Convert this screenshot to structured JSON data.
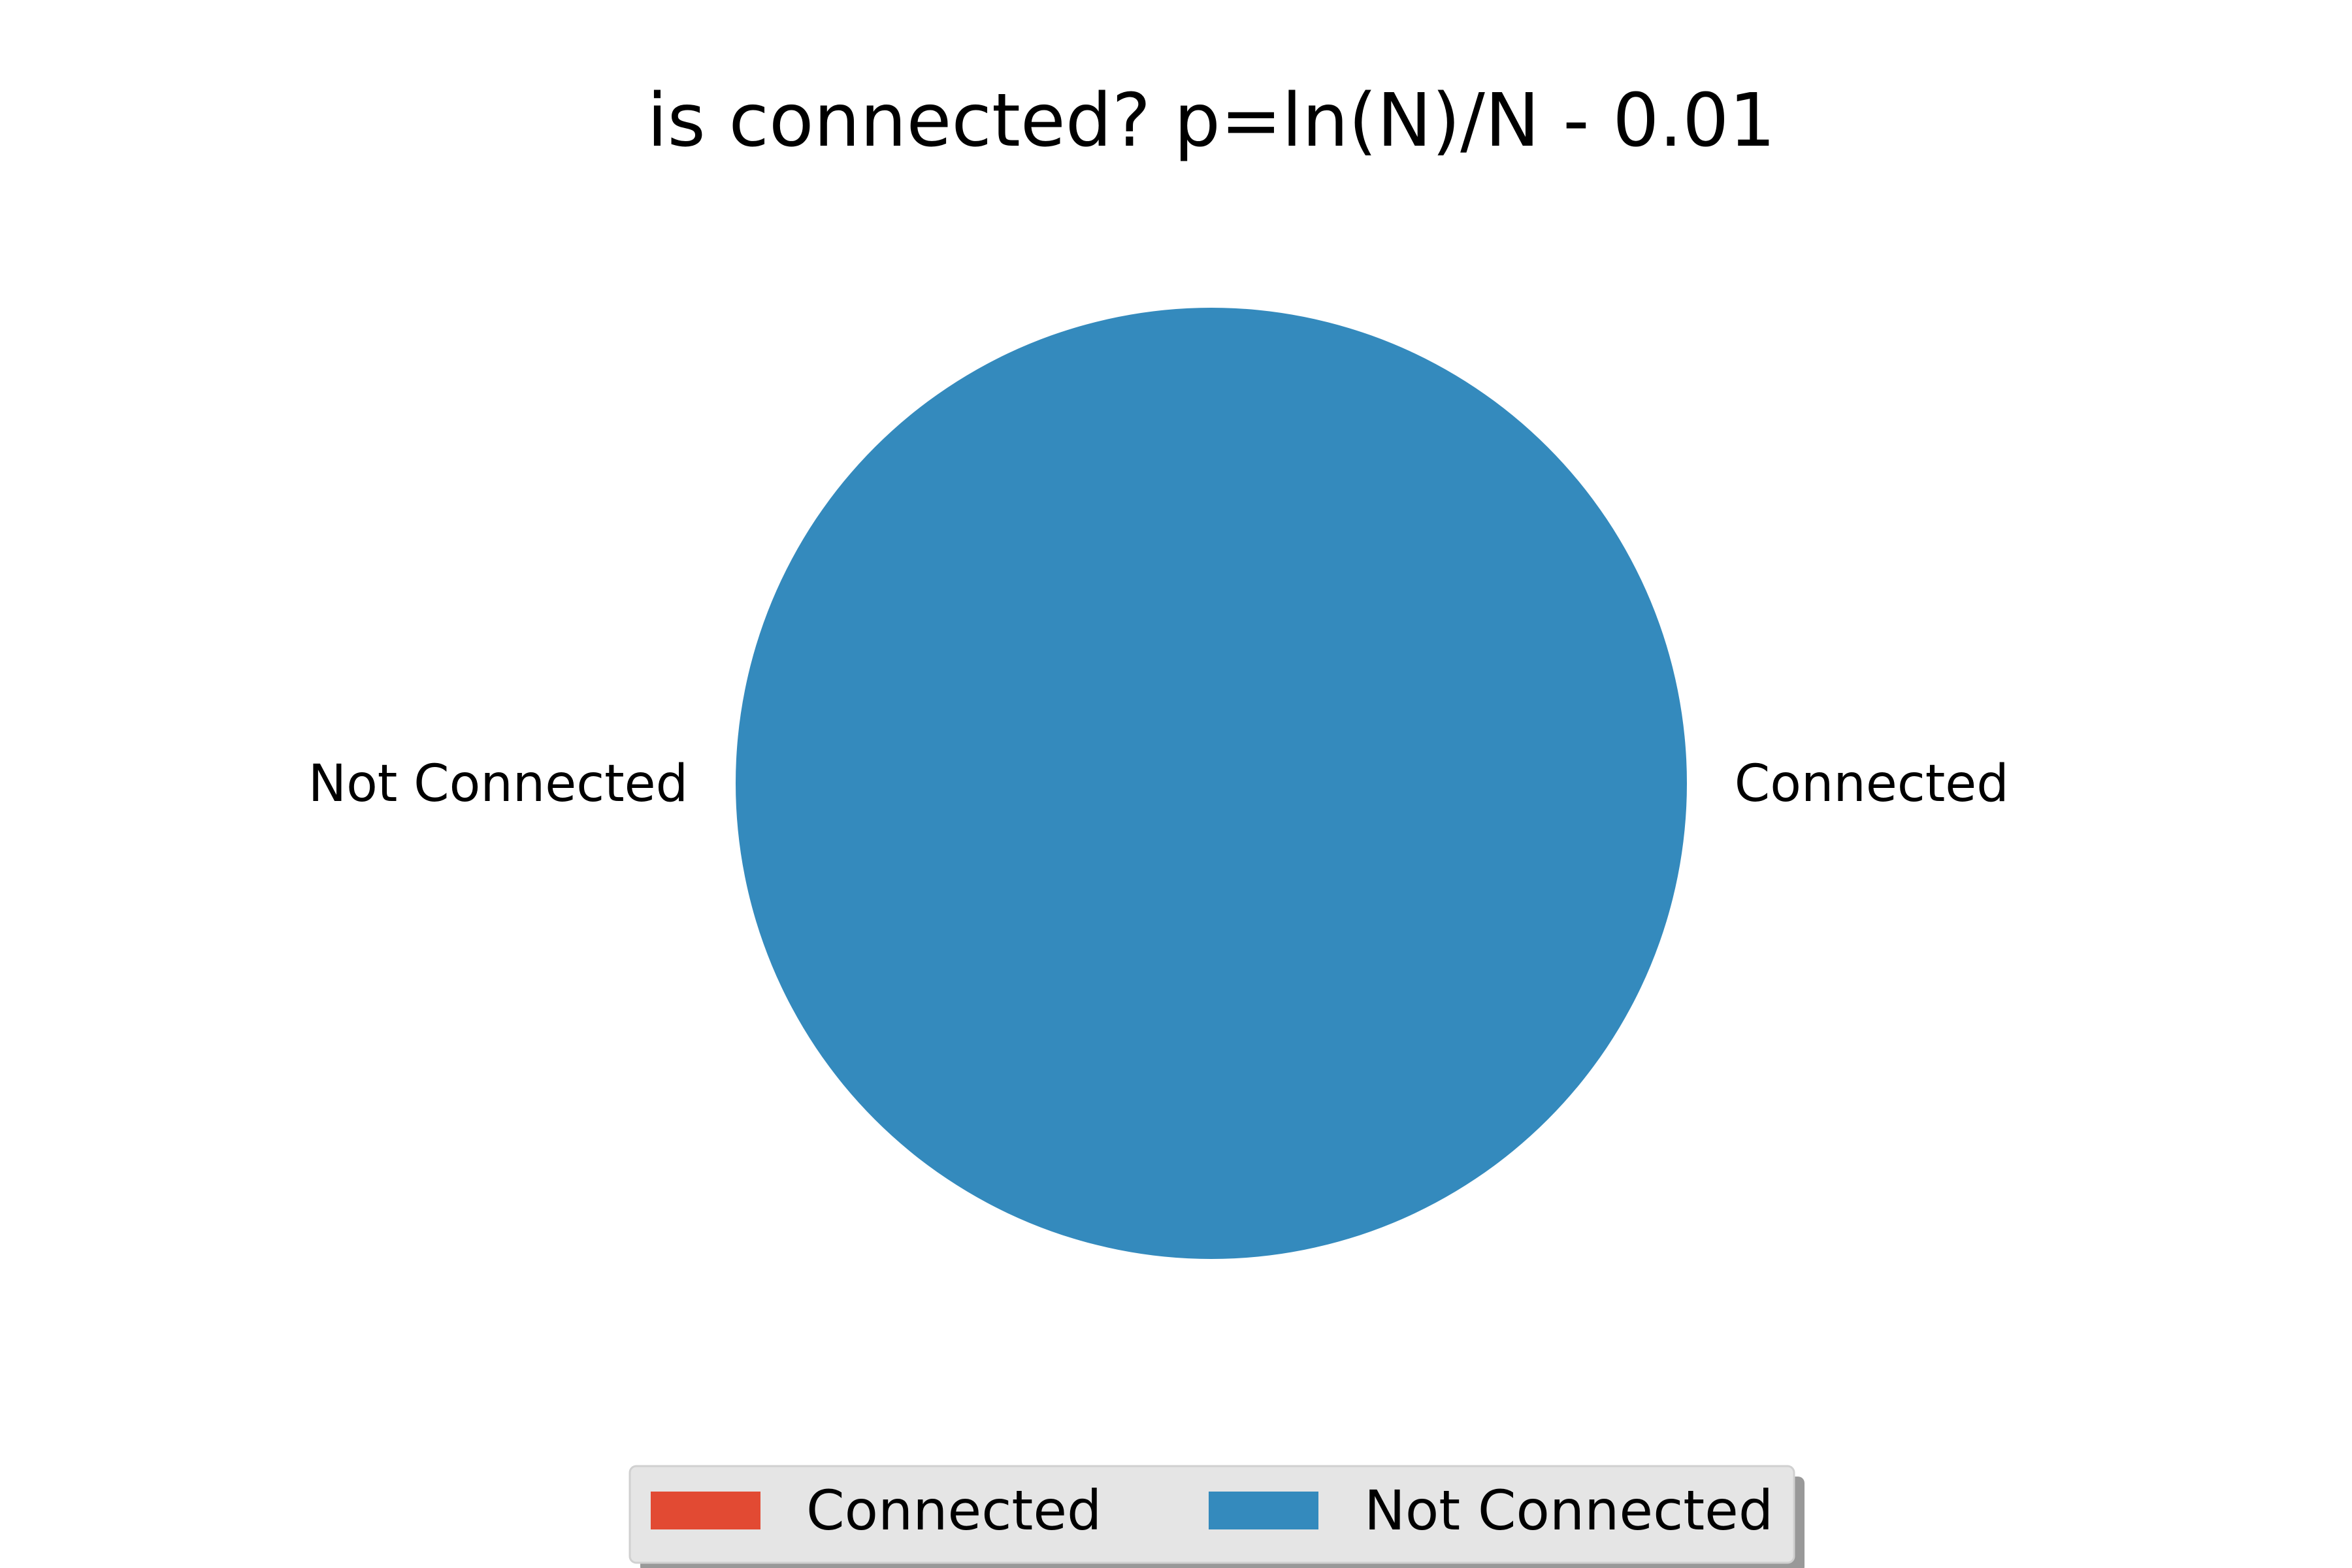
{
  "chart_data": {
    "type": "pie",
    "title": "is connected? p=ln(N)/N - 0.01",
    "categories": [
      "Connected",
      "Not Connected"
    ],
    "values": [
      0,
      100
    ],
    "slice_labels": [
      "Connected",
      "Not Connected"
    ],
    "colors": [
      "#e24a33",
      "#348abd"
    ],
    "legend": {
      "placement": "bottom-center",
      "entries": [
        "Connected",
        "Not Connected"
      ]
    }
  }
}
